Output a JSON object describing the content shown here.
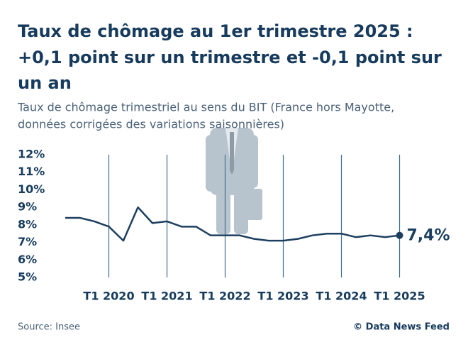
{
  "chart_data": {
    "type": "line",
    "title": [
      "Taux de chômage au 1er trimestre 2025 :",
      "+0,1 point sur un trimestre et -0,1 point sur",
      "un an"
    ],
    "subtitle": [
      "Taux de chômage trimestriel au sens du BIT (France hors Mayotte,",
      "données corrigées des variations saisonnières)"
    ],
    "categories": [
      null,
      null,
      null,
      "T1 2020",
      null,
      null,
      null,
      "T1 2021",
      null,
      null,
      null,
      "T1 2022",
      null,
      null,
      null,
      "T1 2023",
      null,
      null,
      null,
      "T1 2024",
      null,
      null,
      null,
      "T1 2025"
    ],
    "series": [
      {
        "name": "Taux de chômage",
        "color": "#1d3f5f",
        "values": [
          8.4,
          8.4,
          8.2,
          7.9,
          7.1,
          9.0,
          8.1,
          8.2,
          7.9,
          7.9,
          7.4,
          7.4,
          7.4,
          7.2,
          7.1,
          7.1,
          7.2,
          7.4,
          7.5,
          7.5,
          7.3,
          7.4,
          7.3,
          7.4
        ],
        "value_labels": [
          null,
          null,
          null,
          null,
          null,
          null,
          null,
          null,
          null,
          null,
          null,
          null,
          null,
          null,
          null,
          null,
          null,
          null,
          null,
          null,
          null,
          null,
          null,
          "7,4%"
        ]
      }
    ],
    "ylim": [
      5,
      12
    ],
    "yticks": [
      {
        "value": 5,
        "label": "5%"
      },
      {
        "value": 6,
        "label": "6%"
      },
      {
        "value": 7,
        "label": "7%"
      },
      {
        "value": 8,
        "label": "8%"
      },
      {
        "value": 9,
        "label": "9%"
      },
      {
        "value": 10,
        "label": "10%"
      },
      {
        "value": 11,
        "label": "11%"
      },
      {
        "value": 12,
        "label": "12%"
      }
    ],
    "grid": "x",
    "source": "Source: Insee",
    "credit": "© Data News Feed"
  }
}
